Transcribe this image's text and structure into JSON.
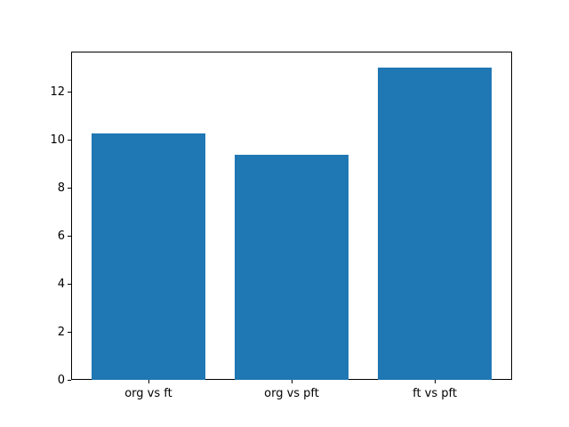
{
  "chart_data": {
    "type": "bar",
    "title": "",
    "xlabel": "",
    "ylabel": "",
    "categories": [
      "org vs ft",
      "org vs pft",
      "ft vs pft"
    ],
    "values": [
      10.24,
      9.35,
      13.0
    ],
    "bar_color": "#1f77b4",
    "yticks": [
      0,
      2,
      4,
      6,
      8,
      10,
      12
    ],
    "ylim": [
      0,
      13.65
    ],
    "xlim": [
      -0.54,
      2.54
    ],
    "bar_width": 0.8,
    "grid": false,
    "legend": false,
    "background_color": "#ffffff",
    "spine_color": "#000000"
  }
}
